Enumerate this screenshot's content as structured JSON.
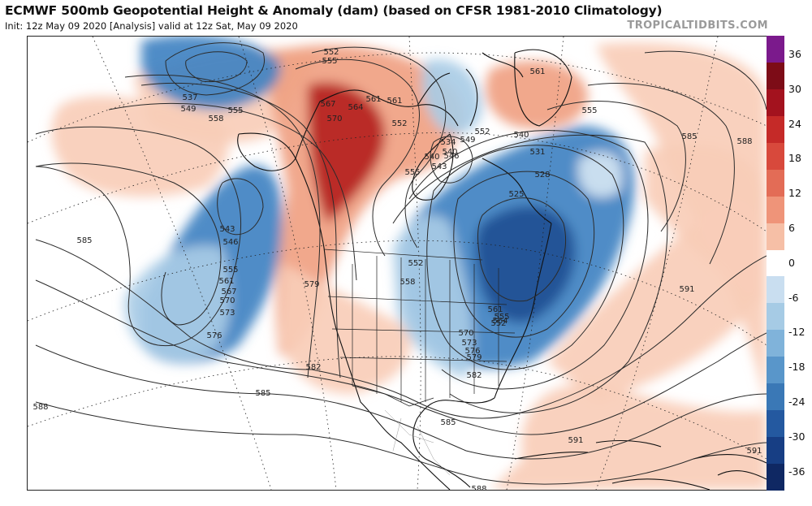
{
  "header": {
    "title": "ECMWF 500mb Geopotential Height & Anomaly (dam) (based on CFSR 1981-2010 Climatology)",
    "subtitle": "Init: 12z May 09 2020   [Analysis]   valid at 12z Sat, May 09 2020",
    "brand": "TROPICALTIDBITS.COM"
  },
  "colorbar": {
    "ticks": [
      "36",
      "30",
      "24",
      "18",
      "12",
      "6",
      "0",
      "-6",
      "-12",
      "-18",
      "-24",
      "-30",
      "-36"
    ],
    "colors": [
      "#7b1a8c",
      "#7d0c17",
      "#a3121e",
      "#c52a28",
      "#d8493c",
      "#e36c56",
      "#ef9479",
      "#f6bfa6",
      "#ffffff",
      "#c9def0",
      "#a6cbe5",
      "#80b3da",
      "#5996ca",
      "#3a78b6",
      "#2459a0",
      "#173e84",
      "#0f2863"
    ]
  },
  "map": {
    "anomaly_colors": {
      "strong_neg": "#1d4f94",
      "neg": "#3f82c2",
      "weak_neg": "#a9cce6",
      "faint_neg": "#d5e6f3",
      "faint_pos": "#f8cdb9",
      "weak_pos": "#f0a182",
      "pos": "#de5f45",
      "strong_pos": "#b5231f"
    },
    "contour_labels": [
      "537",
      "549",
      "555",
      "558",
      "552",
      "555",
      "561",
      "552",
      "555",
      "567",
      "564",
      "561",
      "570",
      "543",
      "546",
      "555",
      "561",
      "567",
      "570",
      "573",
      "576",
      "585",
      "585",
      "588",
      "579",
      "582",
      "585",
      "588",
      "585",
      "552",
      "558",
      "540",
      "543",
      "549",
      "552",
      "540",
      "531",
      "528",
      "525",
      "561",
      "555",
      "552",
      "564",
      "570",
      "573",
      "576",
      "579",
      "582",
      "591",
      "591",
      "588",
      "591",
      "555",
      "561",
      "546",
      "540",
      "534"
    ]
  }
}
